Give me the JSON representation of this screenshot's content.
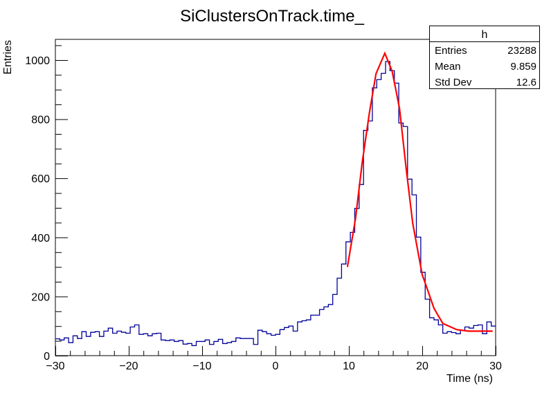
{
  "chart_data": {
    "type": "histogram",
    "title": "SiClustersOnTrack.time_",
    "xlabel": "Time (ns)",
    "ylabel": "Entries",
    "xlim": [
      -30,
      30
    ],
    "ylim": [
      0,
      1070
    ],
    "x_ticks": [
      -30,
      -20,
      -10,
      0,
      10,
      20,
      30
    ],
    "y_ticks": [
      0,
      200,
      400,
      600,
      800,
      1000
    ],
    "grid": false,
    "bin_width": 0.6,
    "histogram_color": "#000099",
    "fit_color": "#ff0000",
    "bin_values": [
      57,
      53,
      60,
      44,
      67,
      58,
      81,
      65,
      79,
      81,
      65,
      83,
      93,
      76,
      83,
      79,
      76,
      97,
      104,
      72,
      74,
      67,
      74,
      76,
      53,
      51,
      53,
      48,
      51,
      39,
      41,
      34,
      48,
      48,
      53,
      38,
      48,
      55,
      41,
      44,
      48,
      60,
      58,
      58,
      58,
      38,
      86,
      81,
      74,
      69,
      72,
      88,
      95,
      100,
      83,
      114,
      118,
      121,
      137,
      137,
      156,
      165,
      173,
      207,
      262,
      310,
      385,
      417,
      498,
      579,
      762,
      794,
      906,
      934,
      955,
      995,
      964,
      922,
      787,
      775,
      597,
      544,
      401,
      282,
      191,
      128,
      121,
      104,
      76,
      81,
      78,
      74,
      86,
      97,
      93,
      102,
      104,
      74,
      114,
      100
    ],
    "fit_curve": {
      "x": [
        9.8,
        10.9,
        11.8,
        12.8,
        13.7,
        14.9,
        15.9,
        16.9,
        17.8,
        18.7,
        20.0,
        20.3,
        21.6,
        22.8,
        24.7,
        26.3,
        29.6
      ],
      "y": [
        300,
        463,
        650,
        822,
        954,
        1023,
        962,
        837,
        635,
        448,
        273,
        253,
        160,
        109,
        88,
        83,
        83
      ]
    },
    "stats_box": {
      "name": "h",
      "rows": [
        {
          "label": "Entries",
          "value": "23288"
        },
        {
          "label": "Mean",
          "value": "9.859"
        },
        {
          "label": "Std Dev",
          "value": "12.6"
        }
      ]
    }
  }
}
